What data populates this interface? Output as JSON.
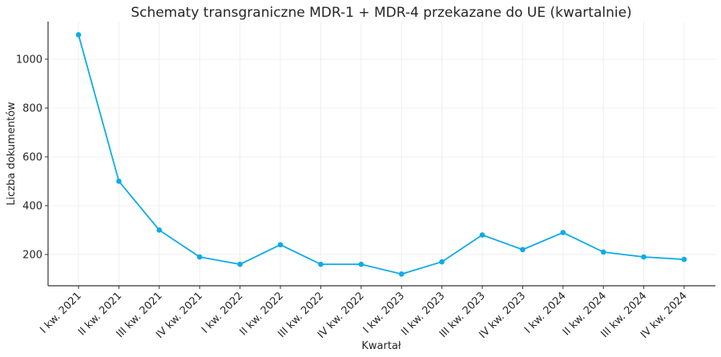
{
  "chart_data": {
    "type": "line",
    "title": "Schematy transgraniczne MDR-1 + MDR-4 przekazane do UE (kwartalnie)",
    "xlabel": "Kwartał",
    "ylabel": "Liczba dokumentów",
    "categories": [
      "I kw. 2021",
      "II kw. 2021",
      "III kw. 2021",
      "IV kw. 2021",
      "I kw. 2022",
      "II kw. 2022",
      "III kw. 2022",
      "IV kw. 2022",
      "I kw. 2023",
      "II kw. 2023",
      "III kw. 2023",
      "IV kw. 2023",
      "I kw. 2024",
      "II kw. 2024",
      "III kw. 2024",
      "IV kw. 2024"
    ],
    "series": [
      {
        "name": "MDR-1 + MDR-4",
        "color": "#0eaae8",
        "values": [
          1100,
          500,
          300,
          190,
          160,
          240,
          160,
          160,
          120,
          170,
          280,
          220,
          290,
          210,
          190,
          180
        ]
      }
    ],
    "yticks": [
      200,
      400,
      600,
      800,
      1000
    ],
    "ylim": [
      72,
      1154
    ],
    "grid": true,
    "legend": null
  }
}
